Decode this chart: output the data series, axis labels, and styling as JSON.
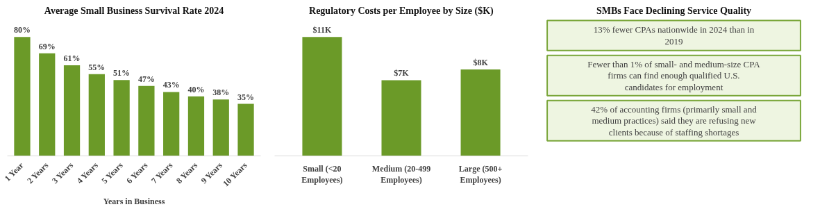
{
  "chart_data": [
    {
      "type": "bar",
      "title": "Average Small Business Survival Rate 2024",
      "xlabel": "Years in Business",
      "categories": [
        "1 Year",
        "2 Years",
        "3 Years",
        "4 Years",
        "5 Years",
        "6 Years",
        "7 Years",
        "8 Years",
        "9 Years",
        "10 Years"
      ],
      "values": [
        80,
        69,
        61,
        55,
        51,
        47,
        43,
        40,
        38,
        35
      ],
      "value_labels": [
        "80%",
        "69%",
        "61%",
        "55%",
        "51%",
        "47%",
        "43%",
        "40%",
        "38%",
        "35%"
      ],
      "color": "#6b9a28",
      "tick_labels": "x"
    },
    {
      "type": "bar",
      "title": "Regulatory Costs per Employee by Size ($K)",
      "categories": [
        "Small (<20 Employees)",
        "Medium (20-499 Employees)",
        "Large (500+ Employees)"
      ],
      "values": [
        11,
        7,
        8
      ],
      "value_labels": [
        "$11K",
        "$7K",
        "$8K"
      ],
      "color": "#6b9a28",
      "tick_labels": "x"
    },
    {
      "type": "other",
      "title": "SMBs Face Declining Service Quality",
      "annotations": [
        "13% fewer CPAs nationwide in 2024 than in 2019",
        "Fewer than 1% of small- and medium-size CPA firms can find enough qualified U.S. candidates for employment",
        "42% of accounting firms (primarily small and medium practices) said they are refusing new clients because of staffing shortages"
      ]
    }
  ]
}
